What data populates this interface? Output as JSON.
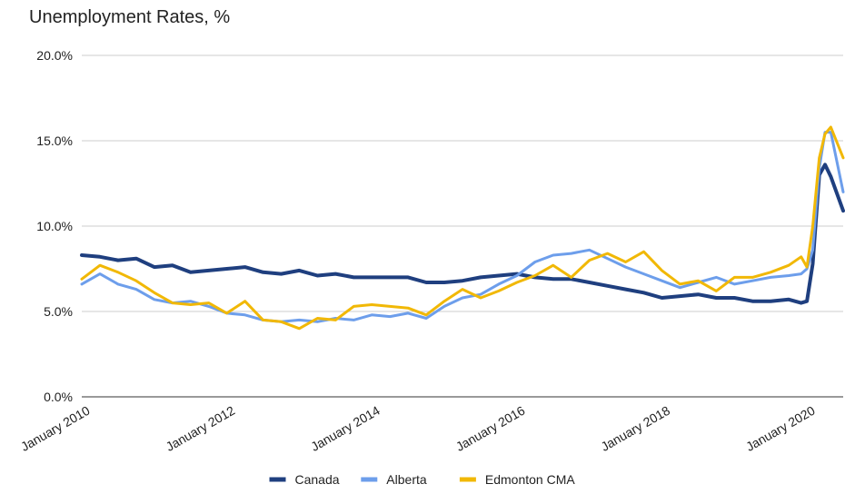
{
  "chart_data": {
    "type": "line",
    "title": "Unemployment Rates, %",
    "xlabel": "",
    "ylabel": "",
    "ylim": [
      0,
      20
    ],
    "yticks": [
      "0.0%",
      "5.0%",
      "10.0%",
      "15.0%",
      "20.0%"
    ],
    "ytick_values": [
      0,
      5,
      10,
      15,
      20
    ],
    "xlim": [
      2010.0,
      2020.5
    ],
    "xticks": [
      "January 2010",
      "January 2012",
      "January 2014",
      "January 2016",
      "January 2018",
      "January 2020"
    ],
    "xtick_values": [
      2010,
      2012,
      2014,
      2016,
      2018,
      2020
    ],
    "legend_position": "bottom",
    "grid": true,
    "series": [
      {
        "name": "Canada",
        "color": "#1f3f7f",
        "x": [
          2010.0,
          2010.25,
          2010.5,
          2010.75,
          2011.0,
          2011.25,
          2011.5,
          2011.75,
          2012.0,
          2012.25,
          2012.5,
          2012.75,
          2013.0,
          2013.25,
          2013.5,
          2013.75,
          2014.0,
          2014.25,
          2014.5,
          2014.75,
          2015.0,
          2015.25,
          2015.5,
          2015.75,
          2016.0,
          2016.25,
          2016.5,
          2016.75,
          2017.0,
          2017.25,
          2017.5,
          2017.75,
          2018.0,
          2018.25,
          2018.5,
          2018.75,
          2019.0,
          2019.25,
          2019.5,
          2019.75,
          2019.92,
          2020.0,
          2020.08,
          2020.17,
          2020.25,
          2020.33,
          2020.5
        ],
        "values": [
          8.3,
          8.2,
          8.0,
          8.1,
          7.6,
          7.7,
          7.3,
          7.4,
          7.5,
          7.6,
          7.3,
          7.2,
          7.4,
          7.1,
          7.2,
          7.0,
          7.0,
          7.0,
          7.0,
          6.7,
          6.7,
          6.8,
          7.0,
          7.1,
          7.2,
          7.0,
          6.9,
          6.9,
          6.7,
          6.5,
          6.3,
          6.1,
          5.8,
          5.9,
          6.0,
          5.8,
          5.8,
          5.6,
          5.6,
          5.7,
          5.5,
          5.6,
          7.8,
          13.0,
          13.6,
          12.9,
          10.9
        ]
      },
      {
        "name": "Alberta",
        "color": "#6d9eeb",
        "x": [
          2010.0,
          2010.25,
          2010.5,
          2010.75,
          2011.0,
          2011.25,
          2011.5,
          2011.75,
          2012.0,
          2012.25,
          2012.5,
          2012.75,
          2013.0,
          2013.25,
          2013.5,
          2013.75,
          2014.0,
          2014.25,
          2014.5,
          2014.75,
          2015.0,
          2015.25,
          2015.5,
          2015.75,
          2016.0,
          2016.25,
          2016.5,
          2016.75,
          2017.0,
          2017.25,
          2017.5,
          2017.75,
          2018.0,
          2018.25,
          2018.5,
          2018.75,
          2019.0,
          2019.25,
          2019.5,
          2019.75,
          2019.92,
          2020.0,
          2020.08,
          2020.17,
          2020.25,
          2020.33,
          2020.5
        ],
        "values": [
          6.6,
          7.2,
          6.6,
          6.3,
          5.7,
          5.5,
          5.6,
          5.3,
          4.9,
          4.8,
          4.5,
          4.4,
          4.5,
          4.4,
          4.6,
          4.5,
          4.8,
          4.7,
          4.9,
          4.6,
          5.3,
          5.8,
          6.0,
          6.6,
          7.1,
          7.9,
          8.3,
          8.4,
          8.6,
          8.1,
          7.6,
          7.2,
          6.8,
          6.4,
          6.7,
          7.0,
          6.6,
          6.8,
          7.0,
          7.1,
          7.2,
          7.5,
          8.6,
          13.4,
          15.5,
          15.5,
          12.0
        ]
      },
      {
        "name": "Edmonton CMA",
        "color": "#f1b806",
        "x": [
          2010.0,
          2010.25,
          2010.5,
          2010.75,
          2011.0,
          2011.25,
          2011.5,
          2011.75,
          2012.0,
          2012.25,
          2012.5,
          2012.75,
          2013.0,
          2013.25,
          2013.5,
          2013.75,
          2014.0,
          2014.25,
          2014.5,
          2014.75,
          2015.0,
          2015.25,
          2015.5,
          2015.75,
          2016.0,
          2016.25,
          2016.5,
          2016.75,
          2017.0,
          2017.25,
          2017.5,
          2017.75,
          2018.0,
          2018.25,
          2018.5,
          2018.75,
          2019.0,
          2019.25,
          2019.5,
          2019.75,
          2019.92,
          2020.0,
          2020.08,
          2020.17,
          2020.25,
          2020.33,
          2020.5
        ],
        "values": [
          6.9,
          7.7,
          7.3,
          6.8,
          6.1,
          5.5,
          5.4,
          5.5,
          4.9,
          5.6,
          4.5,
          4.4,
          4.0,
          4.6,
          4.5,
          5.3,
          5.4,
          5.3,
          5.2,
          4.8,
          5.6,
          6.3,
          5.8,
          6.2,
          6.7,
          7.1,
          7.7,
          7.0,
          8.0,
          8.4,
          7.9,
          8.5,
          7.4,
          6.6,
          6.8,
          6.2,
          7.0,
          7.0,
          7.3,
          7.7,
          8.2,
          7.6,
          10.0,
          14.0,
          15.4,
          15.8,
          14.0
        ]
      }
    ]
  }
}
